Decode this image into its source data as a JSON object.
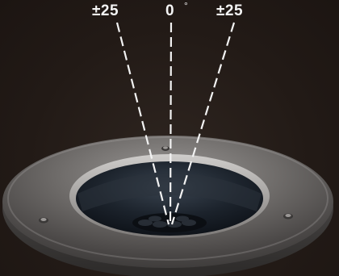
{
  "angle_labels": {
    "left": "±25",
    "center": "0",
    "right": "±25",
    "degree_mark": "°"
  }
}
